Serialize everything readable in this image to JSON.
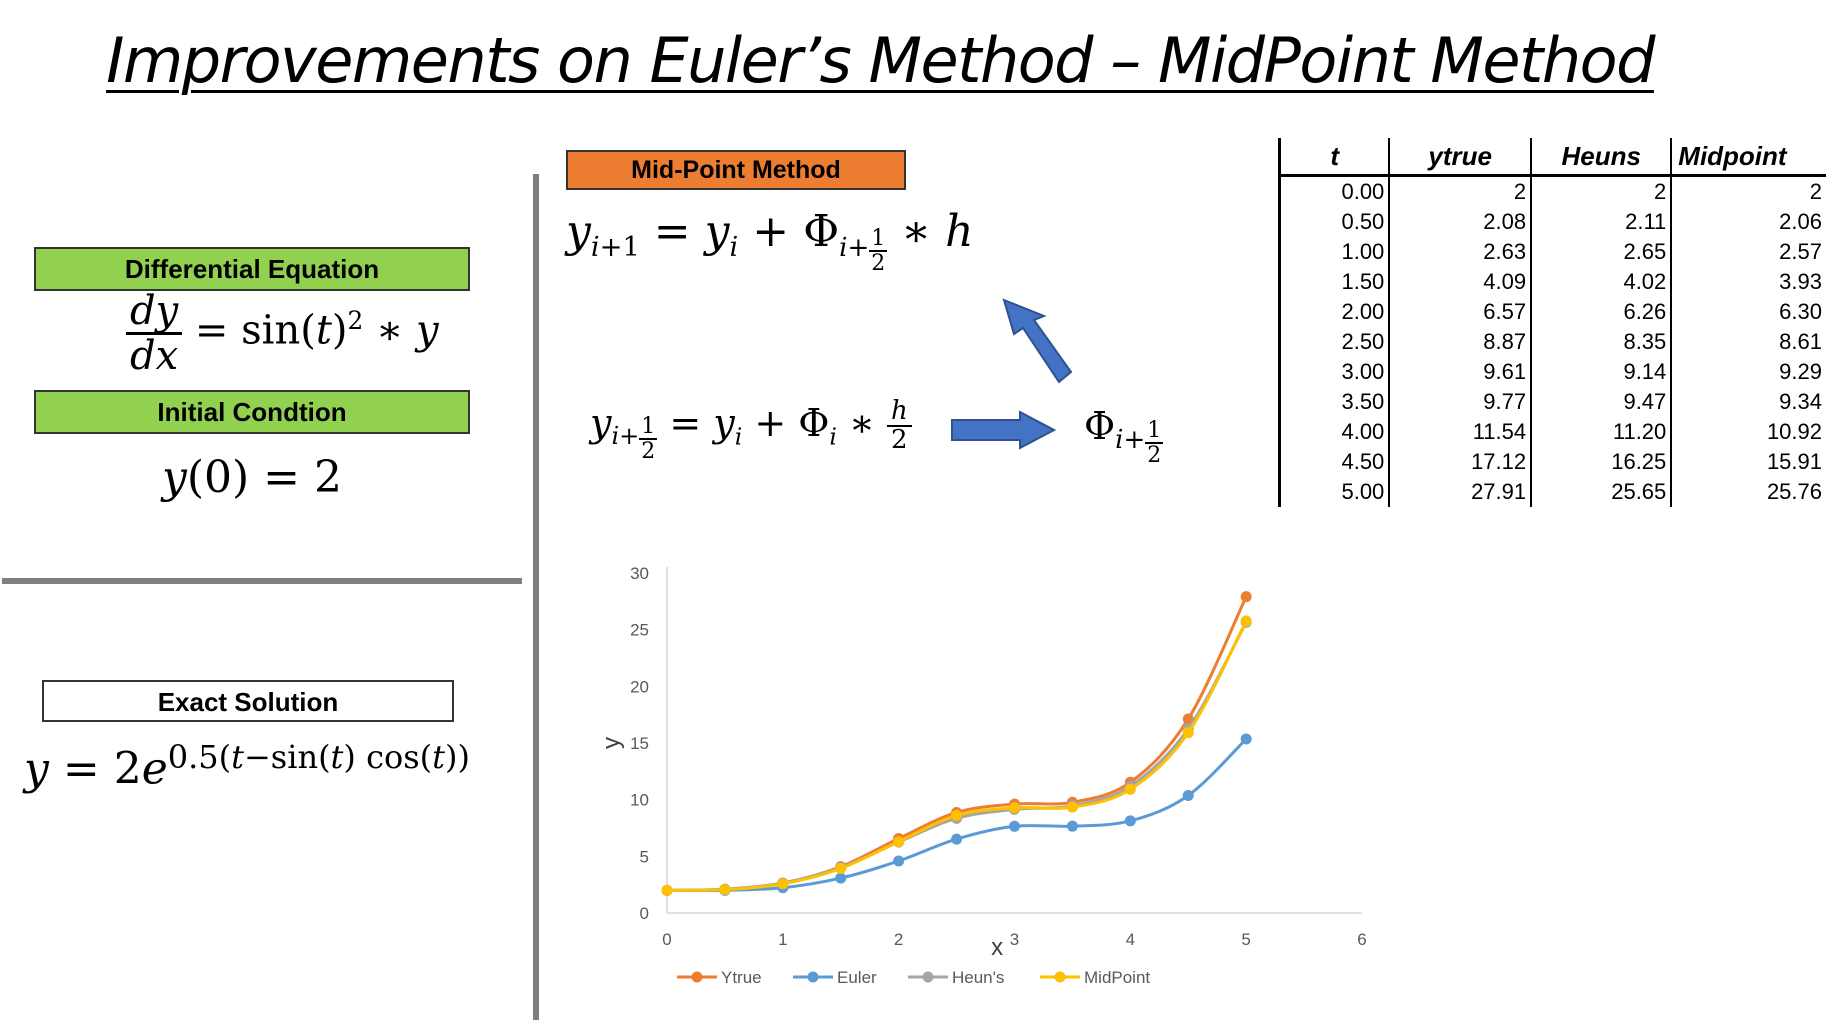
{
  "title": "Improvements on Euler’s Method – MidPoint Method",
  "labels": {
    "differential_equation": "Differential Equation",
    "initial_condition": "Initial Condtion",
    "exact_solution": "Exact Solution",
    "midpoint_method": "Mid-Point Method"
  },
  "equations": {
    "ode": "dy/dx = sin(t)^2 * y",
    "initial": "y(0) = 2",
    "exact": "y = 2e^{0.5(t−sin(t) cos(t))}",
    "step": "y_{i+1} = y_i + Φ_{i+1/2} * h",
    "half_step": "y_{i+1/2} = y_i + Φ_i * h/2",
    "phi_half": "Φ_{i+1/2}"
  },
  "table": {
    "headers": [
      "t",
      "ytrue",
      "Heuns",
      "Midpoint"
    ],
    "rows": [
      [
        "0.00",
        "2",
        "2",
        "2"
      ],
      [
        "0.50",
        "2.08",
        "2.11",
        "2.06"
      ],
      [
        "1.00",
        "2.63",
        "2.65",
        "2.57"
      ],
      [
        "1.50",
        "4.09",
        "4.02",
        "3.93"
      ],
      [
        "2.00",
        "6.57",
        "6.26",
        "6.30"
      ],
      [
        "2.50",
        "8.87",
        "8.35",
        "8.61"
      ],
      [
        "3.00",
        "9.61",
        "9.14",
        "9.29"
      ],
      [
        "3.50",
        "9.77",
        "9.47",
        "9.34"
      ],
      [
        "4.00",
        "11.54",
        "11.20",
        "10.92"
      ],
      [
        "4.50",
        "17.12",
        "16.25",
        "15.91"
      ],
      [
        "5.00",
        "27.91",
        "25.65",
        "25.76"
      ]
    ]
  },
  "chart_data": {
    "type": "line",
    "xlabel": "x",
    "ylabel": "y",
    "xlim": [
      0,
      6
    ],
    "ylim": [
      0,
      30
    ],
    "xticks": [
      0,
      1,
      2,
      3,
      4,
      5,
      6
    ],
    "yticks": [
      0,
      5,
      10,
      15,
      20,
      25,
      30
    ],
    "legend_position": "bottom",
    "x": [
      0,
      0.5,
      1,
      1.5,
      2,
      2.5,
      3,
      3.5,
      4,
      4.5,
      5
    ],
    "series": [
      {
        "name": "Ytrue",
        "color": "#ed7d31",
        "values": [
          2,
          2.08,
          2.63,
          4.09,
          6.57,
          8.87,
          9.61,
          9.77,
          11.54,
          17.12,
          27.91
        ]
      },
      {
        "name": "Euler",
        "color": "#5b9bd5",
        "values": [
          2,
          2,
          2.23,
          3.08,
          4.59,
          6.52,
          7.65,
          7.66,
          8.13,
          10.37,
          15.35
        ]
      },
      {
        "name": "Heun's",
        "color": "#a5a5a5",
        "values": [
          2,
          2.11,
          2.65,
          4.02,
          6.26,
          8.35,
          9.14,
          9.47,
          11.2,
          16.25,
          25.65
        ]
      },
      {
        "name": "MidPoint",
        "color": "#ffc000",
        "values": [
          2,
          2.06,
          2.57,
          3.93,
          6.3,
          8.61,
          9.29,
          9.34,
          10.92,
          15.91,
          25.76
        ]
      }
    ]
  }
}
